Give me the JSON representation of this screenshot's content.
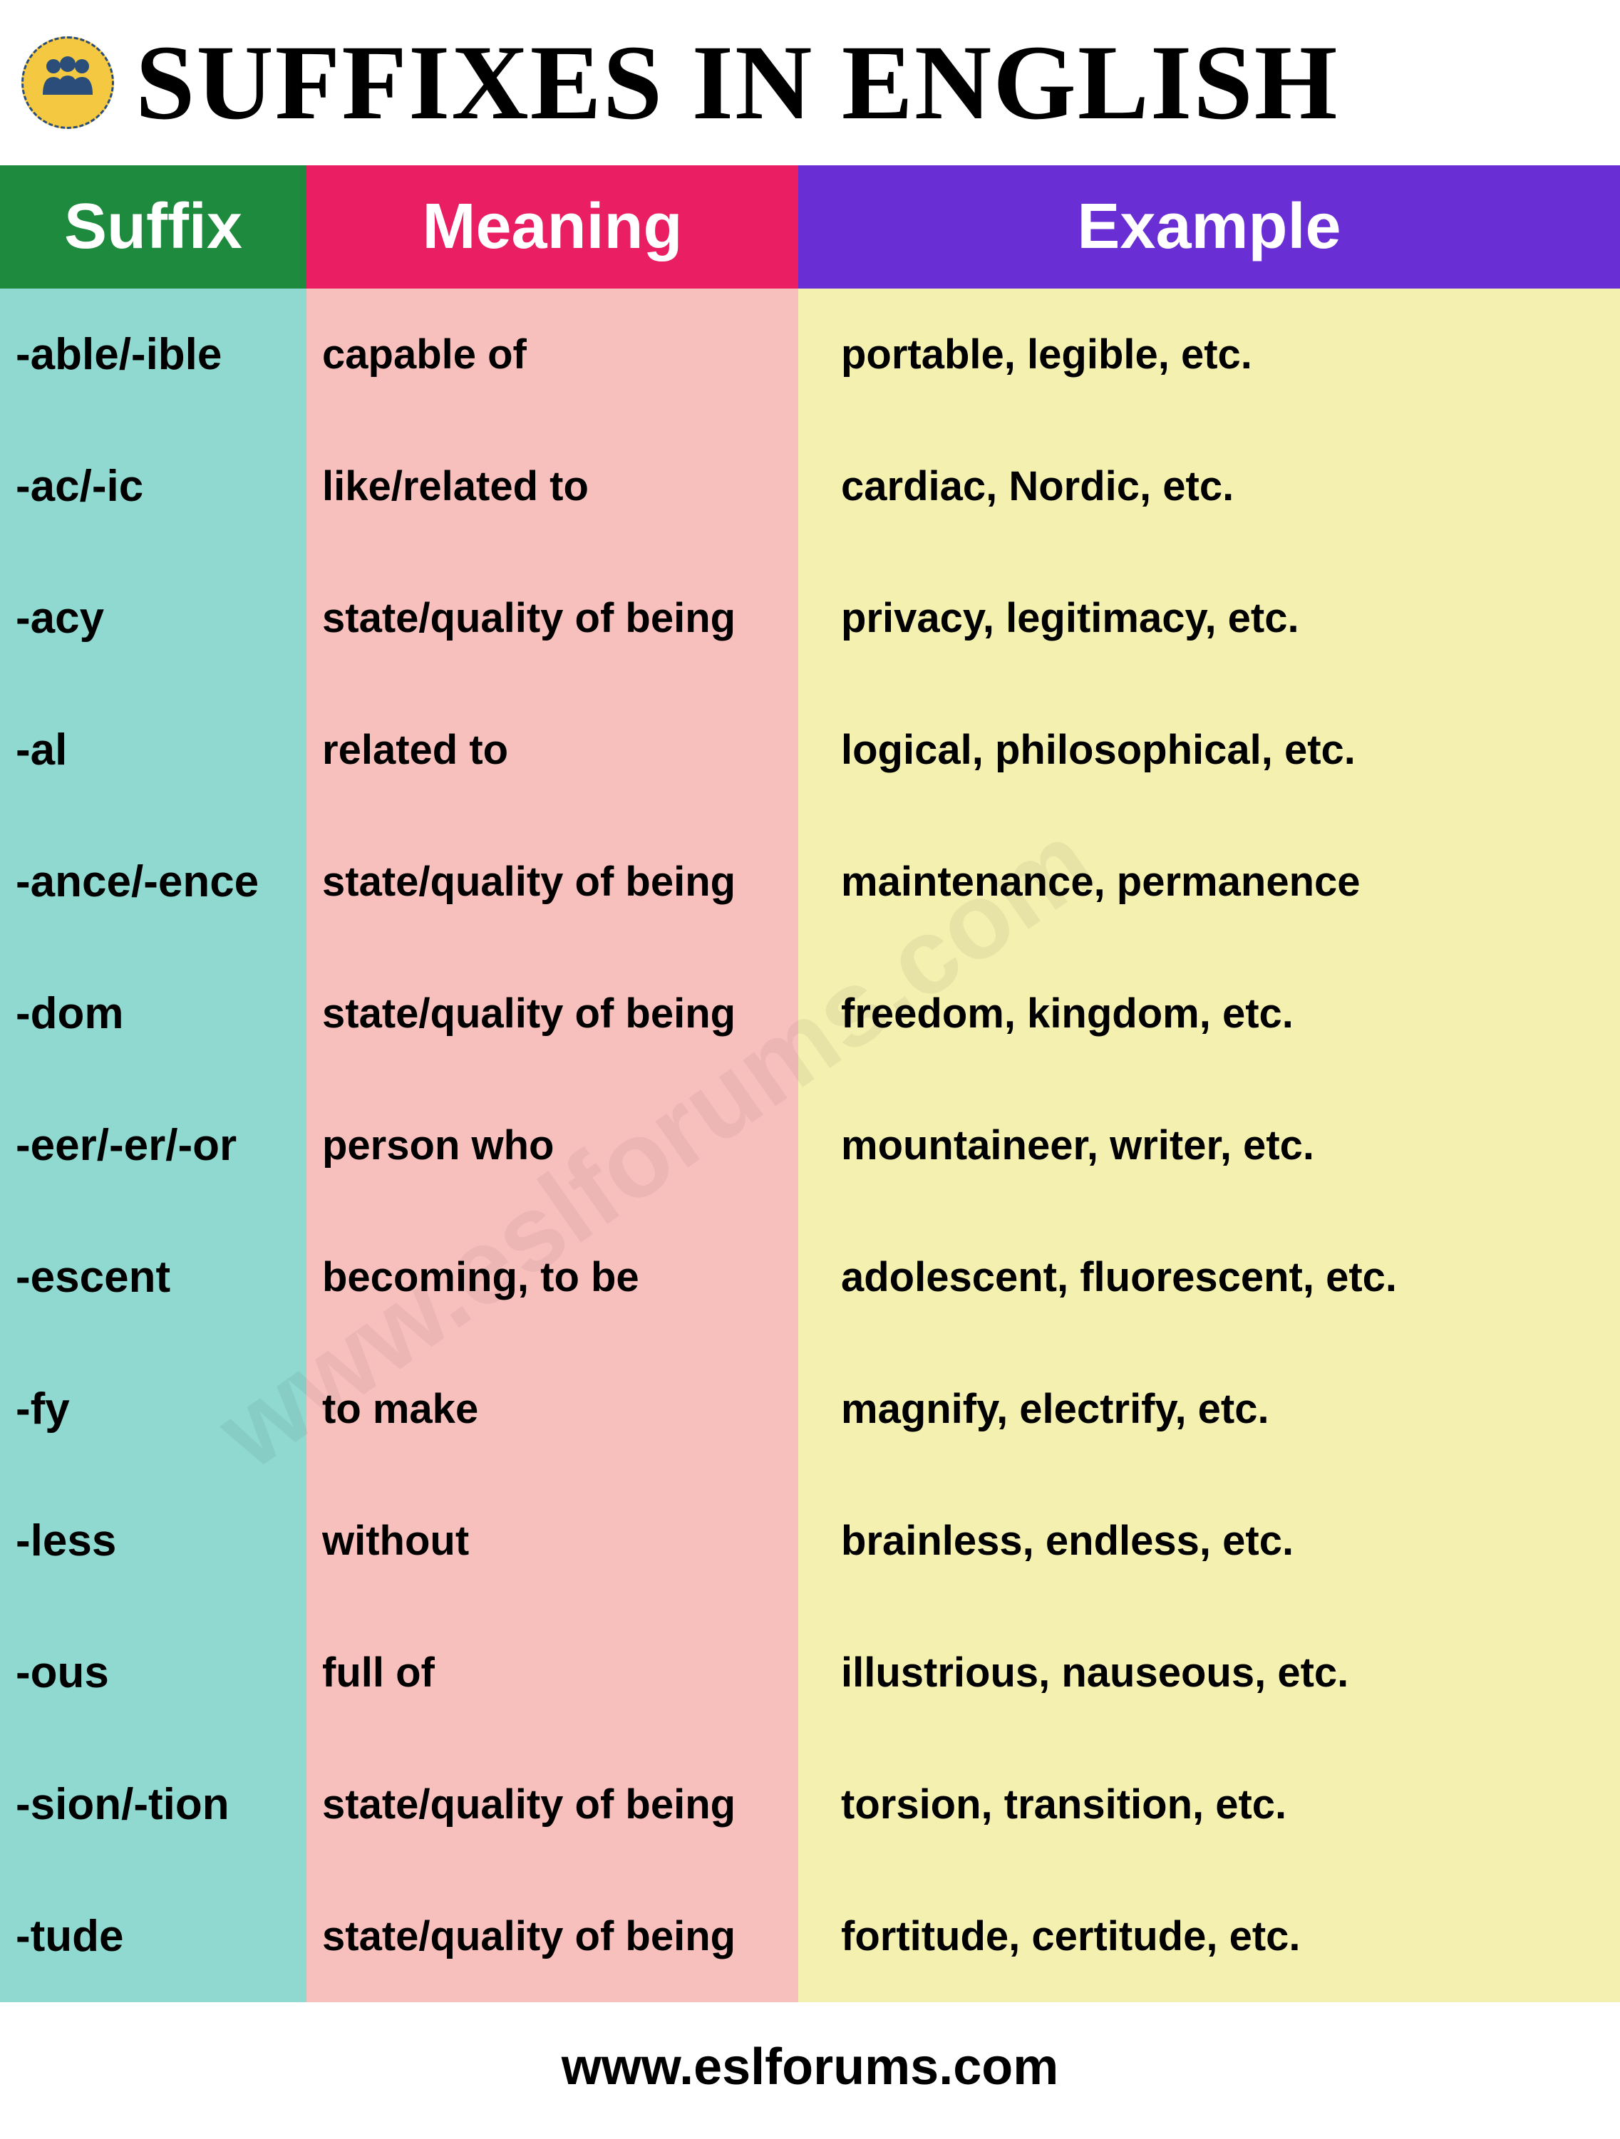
{
  "title": "SUFFIXES IN ENGLISH",
  "footer": "www.eslforums.com",
  "watermark": "www.eslforums.com",
  "colors": {
    "header_suffix_bg": "#1e8a3d",
    "header_meaning_bg": "#e91e63",
    "header_example_bg": "#6a2fd4",
    "col_suffix_bg": "#8fd9d0",
    "col_meaning_bg": "#f8c0bd",
    "col_example_bg": "#f4f0b0",
    "logo_bg": "#f5c842",
    "logo_fg": "#2a4d7a"
  },
  "columns": [
    {
      "key": "suffix",
      "label": "Suffix"
    },
    {
      "key": "meaning",
      "label": "Meaning"
    },
    {
      "key": "example",
      "label": "Example"
    }
  ],
  "rows": [
    {
      "suffix": "-able/-ible",
      "meaning": "capable of",
      "example": "portable, legible, etc."
    },
    {
      "suffix": "-ac/-ic",
      "meaning": "like/related to",
      "example": "cardiac, Nordic, etc."
    },
    {
      "suffix": "-acy",
      "meaning": "state/quality of being",
      "example": "privacy, legitimacy, etc."
    },
    {
      "suffix": "-al",
      "meaning": "related to",
      "example": "logical, philosophical, etc."
    },
    {
      "suffix": "-ance/-ence",
      "meaning": "state/quality of being",
      "example": "maintenance, permanence"
    },
    {
      "suffix": "-dom",
      "meaning": "state/quality of being",
      "example": "freedom, kingdom, etc."
    },
    {
      "suffix": "-eer/-er/-or",
      "meaning": "person who",
      "example": "mountaineer, writer, etc."
    },
    {
      "suffix": "-escent",
      "meaning": "becoming, to be",
      "example": "adolescent, fluorescent, etc."
    },
    {
      "suffix": "-fy",
      "meaning": "to make",
      "example": "magnify, electrify, etc."
    },
    {
      "suffix": "-less",
      "meaning": "without",
      "example": "brainless, endless, etc."
    },
    {
      "suffix": "-ous",
      "meaning": "full of",
      "example": "illustrious, nauseous, etc."
    },
    {
      "suffix": "-sion/-tion",
      "meaning": "state/quality of being",
      "example": "torsion, transition, etc."
    },
    {
      "suffix": "-tude",
      "meaning": "state/quality of being",
      "example": "fortitude, certitude, etc."
    }
  ]
}
